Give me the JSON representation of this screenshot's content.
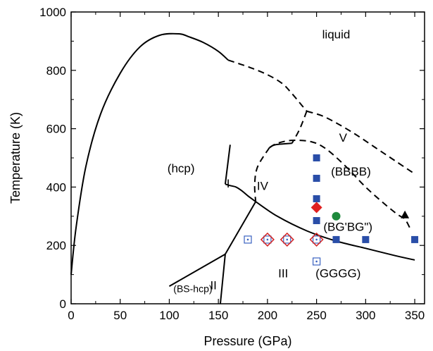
{
  "chart_data": {
    "type": "scatter",
    "title": "",
    "xlabel": "Pressure (GPa)",
    "ylabel": "Temperature (K)",
    "xlim": [
      0,
      360
    ],
    "ylim": [
      0,
      1000
    ],
    "xticks": [
      0,
      50,
      100,
      150,
      200,
      250,
      300,
      350
    ],
    "yticks": [
      0,
      200,
      400,
      600,
      800,
      1000
    ],
    "grid": false,
    "legend": "none",
    "phase_labels": [
      {
        "text": "liquid",
        "x": 270,
        "y": 910
      },
      {
        "text": "(hcp)",
        "x": 112,
        "y": 450
      },
      {
        "text": "I",
        "x": 160,
        "y": 398
      },
      {
        "text": "IV",
        "x": 195,
        "y": 390
      },
      {
        "text": "V",
        "x": 277,
        "y": 555
      },
      {
        "text": "(BBBB)",
        "x": 285,
        "y": 440
      },
      {
        "text": "(BG'BG\")",
        "x": 282,
        "y": 250
      },
      {
        "text": "III",
        "x": 216,
        "y": 90
      },
      {
        "text": "(GGGG)",
        "x": 272,
        "y": 90
      },
      {
        "text": "II",
        "x": 145,
        "y": 50
      },
      {
        "text": "(BS-hcp)",
        "x": 124,
        "y": 40
      }
    ],
    "boundaries": [
      {
        "style": "solid",
        "x": [
          0,
          5,
          15,
          30,
          50,
          70,
          90,
          110,
          120,
          135,
          150,
          160
        ],
        "y": [
          100,
          260,
          470,
          650,
          790,
          880,
          920,
          925,
          915,
          895,
          865,
          835
        ]
      },
      {
        "style": "dashed",
        "x": [
          160,
          182,
          200,
          215,
          225,
          235,
          240
        ],
        "y": [
          835,
          810,
          785,
          755,
          720,
          680,
          660
        ]
      },
      {
        "style": "dashed",
        "x": [
          240,
          255,
          270,
          290,
          310,
          330,
          350
        ],
        "y": [
          660,
          645,
          620,
          580,
          535,
          490,
          445
        ]
      },
      {
        "style": "dashed",
        "x": [
          240,
          233,
          225
        ],
        "y": [
          660,
          600,
          550
        ]
      },
      {
        "style": "solid",
        "x": [
          225,
          208,
          202
        ],
        "y": [
          550,
          545,
          535
        ]
      },
      {
        "style": "dashed",
        "x": [
          202,
          190,
          187,
          188
        ],
        "y": [
          535,
          470,
          410,
          350
        ]
      },
      {
        "style": "solid",
        "x": [
          188,
          184,
          180,
          174,
          168,
          162,
          157
        ],
        "y": [
          350,
          360,
          370,
          387,
          400,
          405,
          410
        ]
      },
      {
        "style": "solid",
        "x": [
          157,
          162
        ],
        "y": [
          410,
          545
        ]
      },
      {
        "style": "solid",
        "x": [
          188,
          210,
          240,
          270,
          300,
          330,
          350
        ],
        "y": [
          350,
          300,
          250,
          215,
          190,
          165,
          150
        ]
      },
      {
        "style": "solid",
        "x": [
          100,
          157
        ],
        "y": [
          60,
          170
        ]
      },
      {
        "style": "solid",
        "x": [
          157,
          152
        ],
        "y": [
          170,
          0
        ]
      },
      {
        "style": "solid",
        "x": [
          157,
          188
        ],
        "y": [
          170,
          350
        ]
      },
      {
        "style": "dashed",
        "x": [
          202,
          210,
          225,
          245,
          260,
          280,
          300,
          320,
          333,
          340,
          345
        ],
        "y": [
          535,
          550,
          560,
          555,
          530,
          470,
          400,
          340,
          305,
          290,
          260
        ]
      }
    ],
    "series": [
      {
        "marker": "filled-square",
        "color": "#2a4ea8",
        "x": [
          250,
          250,
          250,
          250,
          250,
          270,
          300,
          350
        ],
        "y": [
          500,
          430,
          360,
          285,
          220,
          220,
          220,
          220
        ]
      },
      {
        "marker": "open-square-dot",
        "color": "#3a62c0",
        "x": [
          180,
          200,
          220,
          250,
          250
        ],
        "y": [
          220,
          220,
          220,
          220,
          145
        ]
      },
      {
        "marker": "open-diamond",
        "color": "#d42525",
        "x": [
          200,
          220,
          250
        ],
        "y": [
          220,
          220,
          220
        ]
      },
      {
        "marker": "filled-diamond",
        "color": "#e02020",
        "x": [
          250
        ],
        "y": [
          330
        ]
      },
      {
        "marker": "filled-circle",
        "color": "#1e8a3c",
        "x": [
          270
        ],
        "y": [
          300
        ]
      },
      {
        "marker": "filled-triangle",
        "color": "#000000",
        "x": [
          340
        ],
        "y": [
          305
        ]
      }
    ]
  }
}
